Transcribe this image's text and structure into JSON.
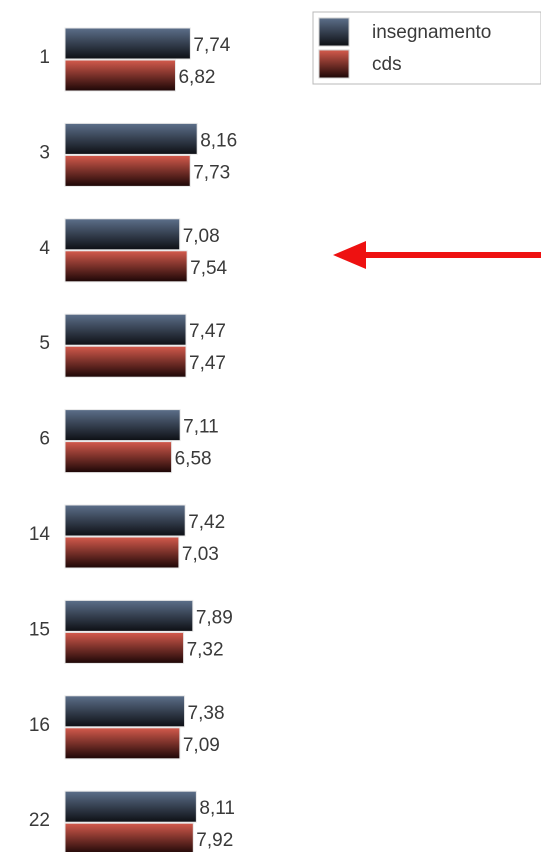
{
  "chart_data": {
    "type": "bar",
    "orientation": "horizontal",
    "categories": [
      "1",
      "3",
      "4",
      "5",
      "6",
      "14",
      "15",
      "16",
      "22"
    ],
    "category_labels_visible": true,
    "series": [
      {
        "name": "insegnamento",
        "values": [
          7.74,
          8.16,
          7.08,
          7.47,
          7.11,
          7.42,
          7.89,
          7.38,
          8.11
        ],
        "value_labels": [
          "7,74",
          "8,16",
          "7,08",
          "7,47",
          "7,11",
          "7,42",
          "7,89",
          "7,38",
          "8,11"
        ],
        "color_top": "#5c6f8a",
        "color_bottom": "#0d0f14"
      },
      {
        "name": "cds",
        "values": [
          6.82,
          7.73,
          7.54,
          7.47,
          6.58,
          7.03,
          7.32,
          7.09,
          7.92
        ],
        "value_labels": [
          "6,82",
          "7,73",
          "7,54",
          "7,47",
          "6,58",
          "7,03",
          "7,32",
          "7,09",
          "7,92"
        ],
        "color_top": "#d45a4c",
        "color_bottom": "#1c0606"
      }
    ],
    "xlim": [
      0,
      10
    ],
    "grid": false,
    "legend": "top-right",
    "annotation": {
      "type": "arrow",
      "points_to_category": "4",
      "direction": "left",
      "color": "#ee1111"
    },
    "title": "",
    "xlabel": "",
    "ylabel": ""
  }
}
